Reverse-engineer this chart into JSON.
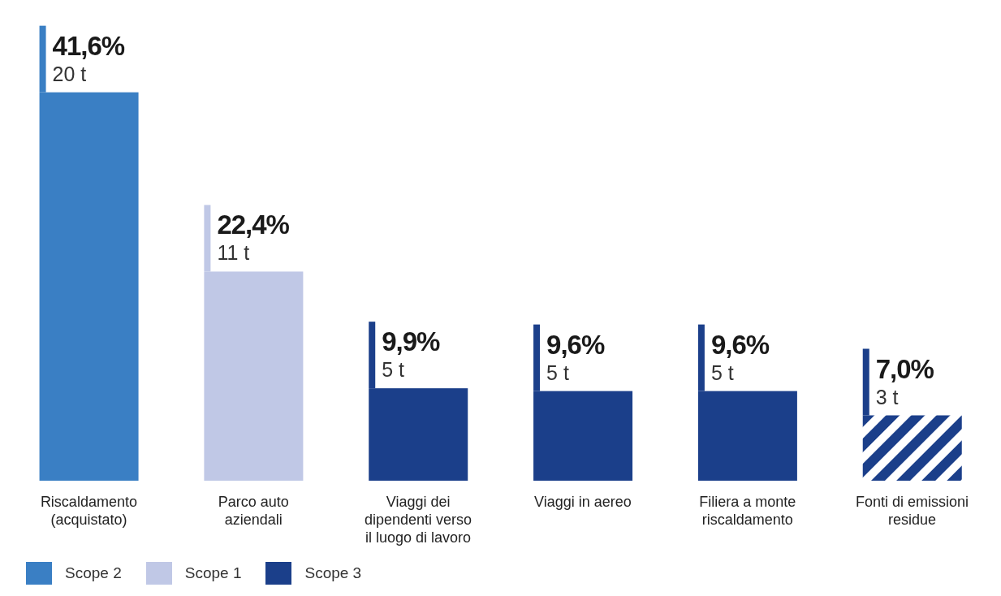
{
  "chart_data": {
    "type": "bar",
    "stacked": true,
    "categories": [
      "Riscaldamento (acquistato)",
      "Parco auto aziendali",
      "Viaggi dei dipendenti verso il luogo di lavoro",
      "Viaggi in aereo",
      "Filiera a monte riscaldamento",
      "Fonti di emissioni residue"
    ],
    "series": [
      {
        "name": "Scope 2",
        "color": "#3a7fc4",
        "values": [
          41.6,
          null,
          null,
          null,
          null,
          null
        ],
        "value_labels": [
          "41,6%",
          null,
          null,
          null,
          null,
          null
        ]
      },
      {
        "name": "Scope 1",
        "color": "#c0c8e6",
        "values": [
          null,
          22.4,
          null,
          null,
          null,
          null
        ],
        "value_labels": [
          null,
          "22,4%",
          null,
          null,
          null,
          null
        ]
      },
      {
        "name": "Scope 3",
        "color": "#1b3f8a",
        "values": [
          null,
          null,
          9.9,
          9.6,
          9.6,
          null
        ],
        "value_labels": [
          null,
          null,
          "9,9%",
          "9,6%",
          "9,6%",
          null
        ]
      },
      {
        "color": "#1b3f8a",
        "values": [
          null,
          null,
          null,
          null,
          null,
          7.0
        ],
        "value_labels": [
          null,
          null,
          null,
          null,
          null,
          "7,0%"
        ]
      }
    ],
    "annotations": [
      {
        "text": "20 t",
        "x": "Riscaldamento (acquistato)",
        "y": 41.6
      },
      {
        "text": "11 t",
        "x": "Parco auto aziendali",
        "y": 22.4
      },
      {
        "text": "5 t",
        "x": "Viaggi dei dipendenti verso il luogo di lavoro",
        "y": 9.9
      },
      {
        "text": "5 t",
        "x": "Viaggi in aereo",
        "y": 9.6
      },
      {
        "text": "5 t",
        "x": "Filiera a monte riscaldamento",
        "y": 9.6
      },
      {
        "text": "3 t",
        "x": "Fonti di emissioni residue",
        "y": 7.0
      }
    ],
    "legend": "bottom left"
  }
}
